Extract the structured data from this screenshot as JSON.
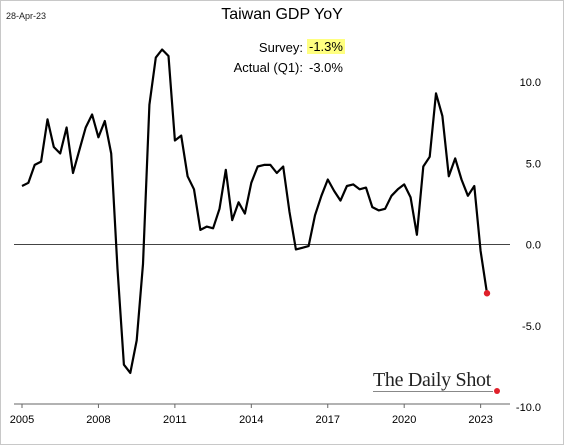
{
  "header": {
    "date": "28-Apr-23",
    "title": "Taiwan GDP YoY"
  },
  "annotations": {
    "survey_label": "Survey:",
    "survey_value": "-1.3%",
    "actual_label": "Actual (Q1):",
    "actual_value": "-3.0%"
  },
  "branding": {
    "name": "The Daily Shot"
  },
  "colors": {
    "line": "#000000",
    "last_point": "#e0202a",
    "highlight": "#ffff80",
    "zero_line": "#444444"
  },
  "chart_data": {
    "type": "line",
    "title": "Taiwan GDP YoY",
    "x_axis": {
      "range": [
        2005.0,
        2023.6
      ],
      "tick_labels": [
        "2005",
        "2008",
        "2011",
        "2014",
        "2017",
        "2020",
        "2023"
      ],
      "tick_values": [
        2005,
        2008,
        2011,
        2014,
        2017,
        2020,
        2023
      ]
    },
    "y_axis": {
      "position": "right",
      "range": [
        -10,
        12.5
      ],
      "tick_labels": [
        "10.0",
        "5.0",
        "0.0",
        "-5.0",
        "-10.0"
      ],
      "tick_values": [
        10,
        5,
        0,
        -5,
        -10
      ]
    },
    "grid": false,
    "legend": "none",
    "series": [
      {
        "x": [
          2005.0,
          2005.25,
          2005.5,
          2005.75,
          2006.0,
          2006.25,
          2006.5,
          2006.75,
          2007.0,
          2007.25,
          2007.5,
          2007.75,
          2008.0,
          2008.25,
          2008.5,
          2008.75,
          2009.0,
          2009.25,
          2009.5,
          2009.75,
          2010.0,
          2010.25,
          2010.5,
          2010.75,
          2011.0,
          2011.25,
          2011.5,
          2011.75,
          2012.0,
          2012.25,
          2012.5,
          2012.75,
          2013.0,
          2013.25,
          2013.5,
          2013.75,
          2014.0,
          2014.25,
          2014.5,
          2014.75,
          2015.0,
          2015.25,
          2015.5,
          2015.75,
          2016.0,
          2016.25,
          2016.5,
          2016.75,
          2017.0,
          2017.25,
          2017.5,
          2017.75,
          2018.0,
          2018.25,
          2018.5,
          2018.75,
          2019.0,
          2019.25,
          2019.5,
          2019.75,
          2020.0,
          2020.25,
          2020.5,
          2020.75,
          2021.0,
          2021.25,
          2021.5,
          2021.75,
          2022.0,
          2022.25,
          2022.5,
          2022.75,
          2023.0
        ],
        "values": [
          3.6,
          3.8,
          4.9,
          5.1,
          7.7,
          6.0,
          5.6,
          7.2,
          4.4,
          5.8,
          7.2,
          8.0,
          6.6,
          7.6,
          5.6,
          -1.5,
          -7.4,
          -7.9,
          -5.9,
          -1.2,
          8.6,
          11.5,
          12.0,
          11.6,
          6.4,
          6.7,
          4.2,
          3.4,
          0.9,
          1.1,
          1.0,
          2.2,
          4.6,
          1.5,
          2.6,
          1.9,
          3.8,
          4.8,
          4.9,
          4.9,
          4.4,
          4.8,
          2.0,
          -0.3,
          -0.2,
          -0.1,
          1.8,
          3.0,
          4.0,
          3.3,
          2.7,
          3.6,
          3.7,
          3.4,
          3.5,
          2.3,
          2.1,
          2.2,
          3.0,
          3.4,
          3.7,
          2.9,
          0.6,
          4.8,
          5.4,
          9.3,
          7.9,
          4.2,
          5.3,
          4.0,
          3.0,
          3.6,
          -0.4
        ],
        "last_point": {
          "x": 2023.25,
          "value": -3.0
        }
      }
    ]
  }
}
